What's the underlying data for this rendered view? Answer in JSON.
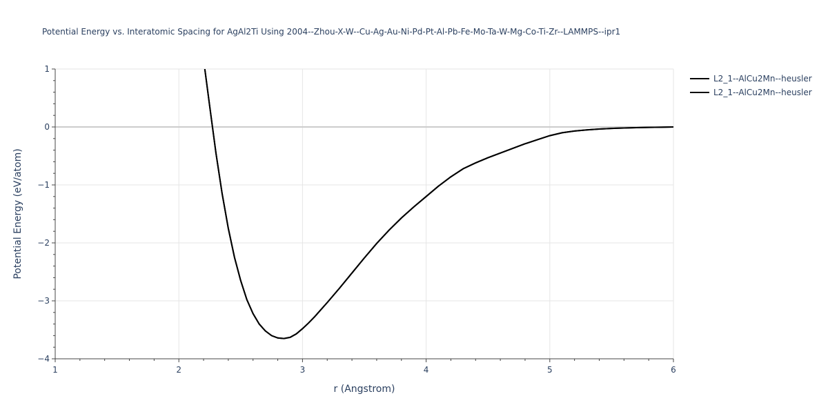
{
  "chart_data": {
    "type": "line",
    "title": "Potential Energy vs. Interatomic Spacing for AgAl2Ti Using 2004--Zhou-X-W--Cu-Ag-Au-Ni-Pd-Pt-Al-Pb-Fe-Mo-Ta-W-Mg-Co-Ti-Zr--LAMMPS--ipr1",
    "xlabel": "r (Angstrom)",
    "ylabel": "Potential Energy (eV/atom)",
    "xlim": [
      1,
      6
    ],
    "ylim": [
      -4,
      1
    ],
    "x_ticks": [
      "1",
      "2",
      "3",
      "4",
      "5",
      "6"
    ],
    "y_ticks": [
      "1",
      "0",
      "−1",
      "−2",
      "−3",
      "−4"
    ],
    "grid": true,
    "legend_position": "top-right",
    "colors": {
      "line": "#000000",
      "grid": "#e5e5e5",
      "zeroline": "#cccccc",
      "text": "#2a3f5f"
    },
    "series": [
      {
        "name": "L2_1--AlCu2Mn--heusler",
        "x": [
          2.21,
          2.25,
          2.3,
          2.35,
          2.4,
          2.45,
          2.5,
          2.55,
          2.6,
          2.65,
          2.7,
          2.75,
          2.8,
          2.85,
          2.9,
          2.95,
          3.0,
          3.05,
          3.1,
          3.15,
          3.2,
          3.3,
          3.4,
          3.5,
          3.6,
          3.7,
          3.8,
          3.9,
          4.0,
          4.1,
          4.2,
          4.3,
          4.4,
          4.5,
          4.6,
          4.7,
          4.8,
          4.9,
          5.0,
          5.1,
          5.2,
          5.3,
          5.4,
          5.5,
          5.6,
          5.7,
          5.8,
          5.9,
          6.0
        ],
        "y": [
          1.0,
          0.35,
          -0.45,
          -1.15,
          -1.75,
          -2.25,
          -2.65,
          -2.98,
          -3.22,
          -3.4,
          -3.52,
          -3.6,
          -3.64,
          -3.65,
          -3.63,
          -3.57,
          -3.48,
          -3.38,
          -3.27,
          -3.15,
          -3.03,
          -2.78,
          -2.52,
          -2.26,
          -2.01,
          -1.78,
          -1.57,
          -1.38,
          -1.2,
          -1.02,
          -0.86,
          -0.72,
          -0.62,
          -0.53,
          -0.45,
          -0.37,
          -0.29,
          -0.22,
          -0.15,
          -0.1,
          -0.07,
          -0.05,
          -0.035,
          -0.025,
          -0.018,
          -0.012,
          -0.008,
          -0.004,
          0.0
        ]
      },
      {
        "name": "L2_1--AlCu2Mn--heusler",
        "x": [
          2.21,
          2.25,
          2.3,
          2.35,
          2.4,
          2.45,
          2.5,
          2.55,
          2.6,
          2.65,
          2.7,
          2.75,
          2.8,
          2.85,
          2.9,
          2.95,
          3.0,
          3.05,
          3.1,
          3.15,
          3.2,
          3.3,
          3.4,
          3.5,
          3.6,
          3.7,
          3.8,
          3.9,
          4.0,
          4.1,
          4.2,
          4.3,
          4.4,
          4.5,
          4.6,
          4.7,
          4.8,
          4.9,
          5.0,
          5.1,
          5.2,
          5.3,
          5.4,
          5.5,
          5.6,
          5.7,
          5.8,
          5.9,
          6.0
        ],
        "y": [
          1.0,
          0.35,
          -0.45,
          -1.15,
          -1.75,
          -2.25,
          -2.65,
          -2.98,
          -3.22,
          -3.4,
          -3.52,
          -3.6,
          -3.64,
          -3.65,
          -3.63,
          -3.57,
          -3.48,
          -3.38,
          -3.27,
          -3.15,
          -3.03,
          -2.78,
          -2.52,
          -2.26,
          -2.01,
          -1.78,
          -1.57,
          -1.38,
          -1.2,
          -1.02,
          -0.86,
          -0.72,
          -0.62,
          -0.53,
          -0.45,
          -0.37,
          -0.29,
          -0.22,
          -0.15,
          -0.1,
          -0.07,
          -0.05,
          -0.035,
          -0.025,
          -0.018,
          -0.012,
          -0.008,
          -0.004,
          0.0
        ]
      }
    ]
  }
}
